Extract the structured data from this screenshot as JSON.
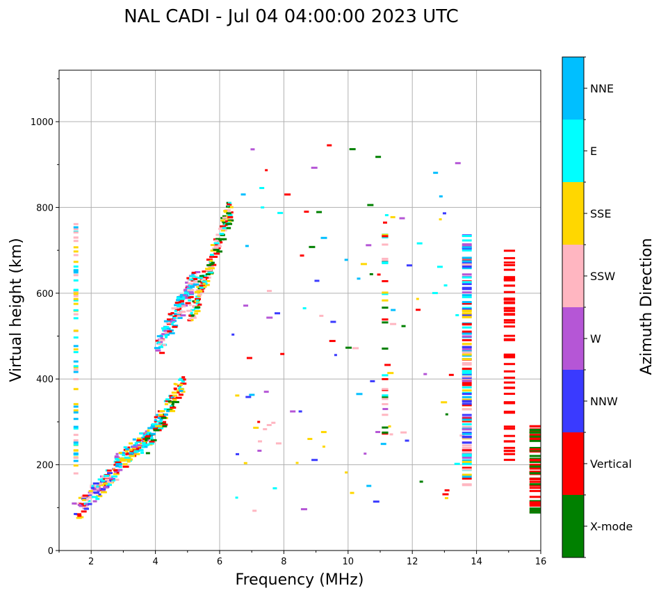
{
  "chart_data": {
    "type": "scatter",
    "title": "NAL CADI - Jul 04 04:00:00 2023 UTC",
    "xlabel": "Frequency (MHz)",
    "ylabel": "Virtual height (km)",
    "xlim": [
      1,
      16
    ],
    "ylim": [
      0,
      1120
    ],
    "xticks": [
      2,
      4,
      6,
      8,
      10,
      12,
      14,
      16
    ],
    "yticks": [
      0,
      200,
      400,
      600,
      800,
      1000
    ],
    "grid": true,
    "colorbar": {
      "title": "Azimuth Direction",
      "categories": [
        {
          "name": "X-mode",
          "color": "#008000"
        },
        {
          "name": "Vertical",
          "color": "#ff0000"
        },
        {
          "name": "NNW",
          "color": "#3a3aff"
        },
        {
          "name": "W",
          "color": "#b556d6"
        },
        {
          "name": "SSW",
          "color": "#ffb6c1"
        },
        {
          "name": "SSE",
          "color": "#ffd700"
        },
        {
          "name": "E",
          "color": "#00ffff"
        },
        {
          "name": "NNE",
          "color": "#00bfff"
        }
      ]
    },
    "echo_groups": [
      {
        "name": "E-region trace",
        "freq_range": [
          1.45,
          2.75
        ],
        "height_range": [
          90,
          190
        ],
        "mix": [
          "Vertical",
          "E",
          "SSW",
          "SSE",
          "W",
          "NNW"
        ],
        "count": 130
      },
      {
        "name": "F1 low trace",
        "freq_range": [
          2.7,
          3.7
        ],
        "height_range": [
          200,
          265
        ],
        "mix": [
          "Vertical",
          "W",
          "E",
          "SSE",
          "NNE"
        ],
        "count": 110
      },
      {
        "name": "F1 trace",
        "freq_range": [
          3.6,
          4.8
        ],
        "height_range": [
          240,
          390
        ],
        "mix": [
          "Vertical",
          "E",
          "X-mode",
          "SSE",
          "NNE"
        ],
        "count": 110
      },
      {
        "name": "F2 trace",
        "freq_range": [
          4.0,
          5.2
        ],
        "height_range": [
          470,
          640
        ],
        "mix": [
          "Vertical",
          "E",
          "NNE",
          "W",
          "SSW"
        ],
        "count": 150
      },
      {
        "name": "F2 X-mode trace",
        "freq_range": [
          5.0,
          6.3
        ],
        "height_range": [
          540,
          800
        ],
        "mix": [
          "X-mode",
          "E",
          "SSE",
          "SSW",
          "Vertical"
        ],
        "count": 170
      },
      {
        "name": "Low freq column",
        "freq_range": [
          1.45,
          1.6
        ],
        "height_range": [
          150,
          770
        ],
        "mix": [
          "SSE",
          "E",
          "SSW",
          "NNE"
        ],
        "count": 70
      },
      {
        "name": "Scattered echoes",
        "freq_range": [
          6.3,
          13.5
        ],
        "height_range": [
          90,
          960
        ],
        "mix": [
          "Vertical",
          "SSW",
          "W",
          "E",
          "SSE",
          "NNE",
          "X-mode",
          "NNW"
        ],
        "count": 110
      },
      {
        "name": "11.2 MHz column",
        "freq_range": [
          11.05,
          11.25
        ],
        "height_range": [
          270,
          750
        ],
        "mix": [
          "SSE",
          "E",
          "Vertical",
          "X-mode",
          "SSW"
        ],
        "count": 30
      },
      {
        "name": "13.7 MHz column",
        "freq_range": [
          13.55,
          13.85
        ],
        "height_range": [
          150,
          735
        ],
        "mix": [
          "NNW",
          "NNE",
          "SSE",
          "E",
          "SSW",
          "W",
          "Vertical"
        ],
        "count": 150
      },
      {
        "name": "15 MHz column",
        "freq_range": [
          14.85,
          15.2
        ],
        "height_range": [
          200,
          700
        ],
        "mix": [
          "Vertical"
        ],
        "count": 60
      },
      {
        "name": "16 MHz column",
        "freq_range": [
          15.65,
          16.0
        ],
        "height_range": [
          88,
          290
        ],
        "mix": [
          "Vertical",
          "X-mode"
        ],
        "count": 60
      }
    ]
  }
}
